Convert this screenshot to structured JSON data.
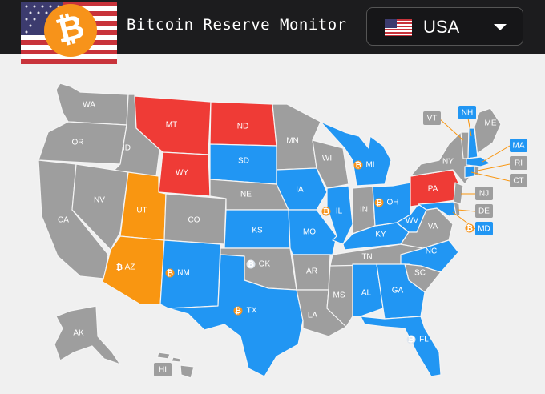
{
  "header": {
    "title": "Bitcoin Reserve Monitor",
    "logo_icon": "bitcoin-logo-icon",
    "flag_icon": "us-flag-icon"
  },
  "country_selector": {
    "selected": "USA",
    "flag_icon": "us-flag-icon",
    "caret_icon": "chevron-down-icon"
  },
  "legend_colors": {
    "passed": "#ef3b36",
    "partial": "#f99611",
    "proposed": "#2196f3",
    "none": "#9e9e9e"
  },
  "states": {
    "WA": "WA",
    "OR": "OR",
    "CA": "CA",
    "ID": "ID",
    "NV": "NV",
    "MT": "MT",
    "WY": "WY",
    "UT": "UT",
    "AZ": "AZ",
    "CO": "CO",
    "NM": "NM",
    "ND": "ND",
    "SD": "SD",
    "NE": "NE",
    "KS": "KS",
    "OK": "OK",
    "TX": "TX",
    "MN": "MN",
    "IA": "IA",
    "MO": "MO",
    "AR": "AR",
    "LA": "LA",
    "WI": "WI",
    "IL": "IL",
    "MS": "MS",
    "MI": "MI",
    "IN": "IN",
    "KY": "KY",
    "TN": "TN",
    "AL": "AL",
    "OH": "OH",
    "WV": "WV",
    "VA": "VA",
    "NC": "NC",
    "SC": "SC",
    "GA": "GA",
    "FL": "FL",
    "PA": "PA",
    "NY": "NY",
    "ME": "ME",
    "AK": "AK",
    "HI": "HI"
  },
  "callouts": {
    "VT": "VT",
    "NH": "NH",
    "MA": "MA",
    "RI": "RI",
    "CT": "CT",
    "NJ": "NJ",
    "DE": "DE",
    "MD": "MD"
  }
}
